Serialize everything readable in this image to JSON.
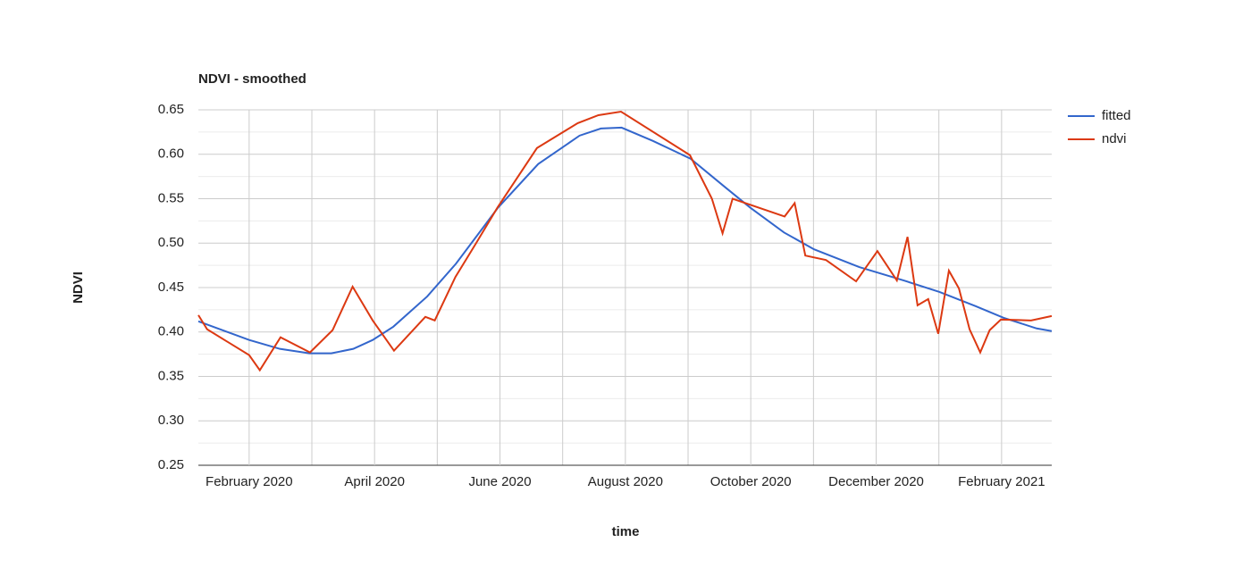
{
  "chart_data": {
    "type": "line",
    "title": "NDVI - smoothed",
    "x_label": "time",
    "y_label": "NDVI",
    "xlim": [
      1.19,
      14.8
    ],
    "xticks": [
      {
        "value": 2,
        "label": "February 2020"
      },
      {
        "value": 4,
        "label": "April 2020"
      },
      {
        "value": 6,
        "label": "June 2020"
      },
      {
        "value": 8,
        "label": "August 2020"
      },
      {
        "value": 10,
        "label": "October 2020"
      },
      {
        "value": 12,
        "label": "December 2020"
      },
      {
        "value": 14,
        "label": "February 2021"
      }
    ],
    "x_minor_ticks": [
      3,
      5,
      7,
      9,
      11,
      13
    ],
    "ylim": [
      0.25,
      0.65
    ],
    "yticks": [
      {
        "value": 0.25,
        "label": "0.25"
      },
      {
        "value": 0.3,
        "label": "0.30"
      },
      {
        "value": 0.35,
        "label": "0.35"
      },
      {
        "value": 0.4,
        "label": "0.40"
      },
      {
        "value": 0.45,
        "label": "0.45"
      },
      {
        "value": 0.5,
        "label": "0.50"
      },
      {
        "value": 0.55,
        "label": "0.55"
      },
      {
        "value": 0.6,
        "label": "0.60"
      },
      {
        "value": 0.65,
        "label": "0.65"
      }
    ],
    "y_minor_ticks": [
      0.275,
      0.325,
      0.375,
      0.425,
      0.475,
      0.525,
      0.575,
      0.625
    ],
    "grid": true,
    "legend": "right",
    "series": [
      {
        "name": "fitted",
        "color": "#3366cc",
        "x": [
          1.19,
          2,
          2.49,
          2.96,
          3.31,
          3.66,
          3.97,
          4.3,
          4.84,
          5.3,
          5.97,
          6.61,
          7.27,
          7.61,
          7.94,
          8.44,
          9.04,
          9.59,
          9.99,
          10.53,
          11.01,
          11.73,
          12.44,
          13.01,
          13.59,
          14.03,
          14.56,
          14.8
        ],
        "values": [
          0.412,
          0.391,
          0.381,
          0.376,
          0.376,
          0.381,
          0.391,
          0.406,
          0.44,
          0.477,
          0.54,
          0.589,
          0.621,
          0.629,
          0.63,
          0.615,
          0.595,
          0.563,
          0.54,
          0.512,
          0.493,
          0.473,
          0.458,
          0.445,
          0.429,
          0.416,
          0.404,
          0.401
        ]
      },
      {
        "name": "ndvi",
        "color": "#dc3912",
        "x": [
          1.19,
          1.33,
          2,
          2.17,
          2.5,
          2.97,
          3.33,
          3.65,
          3.97,
          4.31,
          4.81,
          4.96,
          5.29,
          5.62,
          5.96,
          6.59,
          7.24,
          7.57,
          7.93,
          9.03,
          9.38,
          9.55,
          9.71,
          10.54,
          10.7,
          10.87,
          11.2,
          11.68,
          12.02,
          12.33,
          12.5,
          12.66,
          12.83,
          12.99,
          13.16,
          13.32,
          13.49,
          13.66,
          13.81,
          13.99,
          14.47,
          14.8
        ],
        "values": [
          0.419,
          0.403,
          0.374,
          0.357,
          0.394,
          0.377,
          0.402,
          0.451,
          0.413,
          0.379,
          0.417,
          0.413,
          0.462,
          0.5,
          0.54,
          0.607,
          0.635,
          0.644,
          0.648,
          0.599,
          0.55,
          0.511,
          0.55,
          0.53,
          0.545,
          0.486,
          0.481,
          0.457,
          0.491,
          0.458,
          0.507,
          0.43,
          0.437,
          0.398,
          0.469,
          0.449,
          0.403,
          0.377,
          0.402,
          0.414,
          0.413,
          0.418
        ]
      }
    ]
  }
}
